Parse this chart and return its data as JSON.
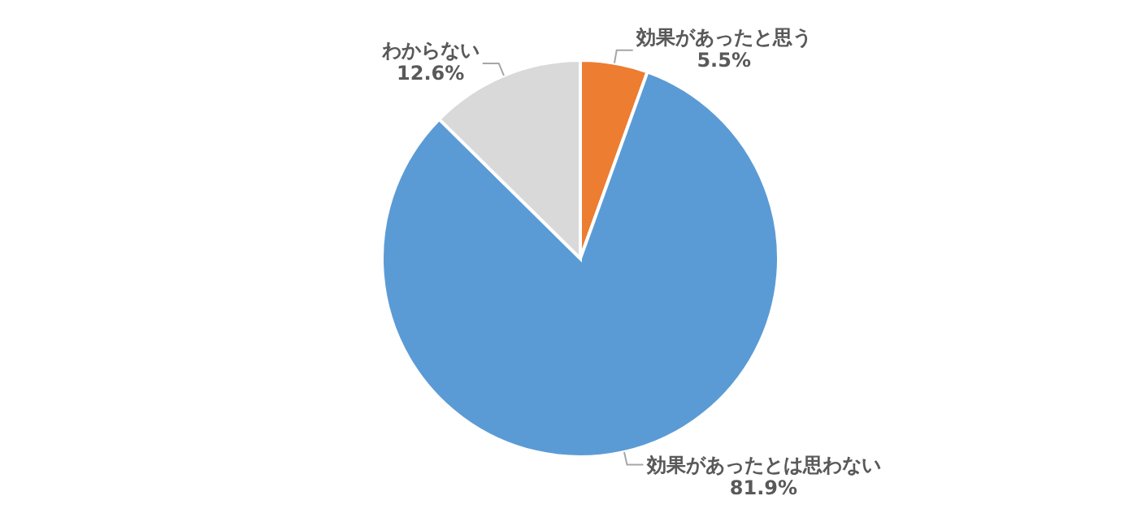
{
  "chart_data": {
    "type": "pie",
    "categories": [
      "効果があったと思う",
      "効果があったとは思わない",
      "わからない"
    ],
    "values": [
      5.5,
      81.9,
      12.6
    ],
    "colors": [
      "#ed7d31",
      "#5b9bd5",
      "#d9d9d9"
    ],
    "value_labels": [
      "5.5%",
      "81.9%",
      "12.6%"
    ],
    "legend": false
  }
}
